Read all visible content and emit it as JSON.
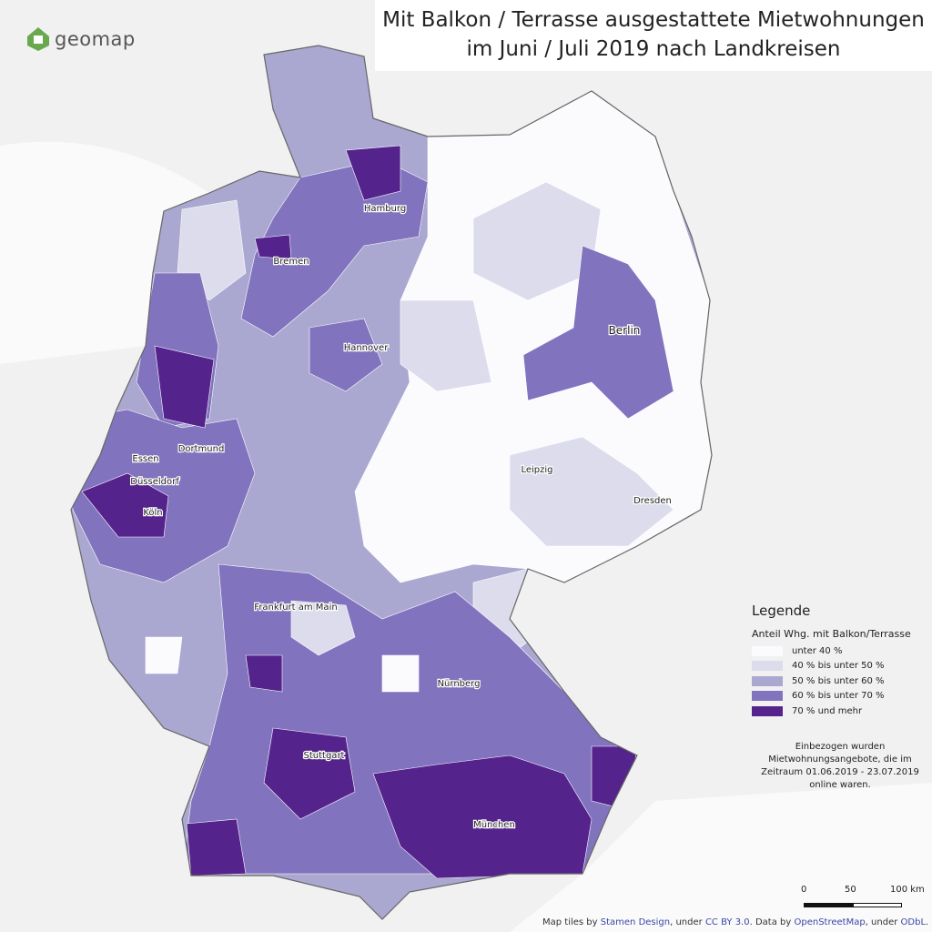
{
  "header": {
    "title_lines": [
      "Mit Balkon / Terrasse ausgestattete Mietwohnungen",
      "im Juni / Juli 2019 nach Landkreisen"
    ],
    "logo": "geomap"
  },
  "cities": [
    "Hamburg",
    "Bremen",
    "Berlin",
    "Hannover",
    "Essen",
    "Dortmund",
    "Düsseldorf",
    "Köln",
    "Leipzig",
    "Dresden",
    "Frankfurt am Main",
    "Nürnberg",
    "Stuttgart",
    "München"
  ],
  "legend": {
    "title": "Legende",
    "subtitle": "Anteil Whg. mit Balkon/Terrasse",
    "classes": [
      {
        "label": "unter 40 %",
        "color": "#fbfafd"
      },
      {
        "label": "40 % bis unter 50 %",
        "color": "#dcdcec"
      },
      {
        "label": "50 % bis unter 60 %",
        "color": "#aaa7d1"
      },
      {
        "label": "60 % bis unter 70 %",
        "color": "#8273bf"
      },
      {
        "label": "70 % und mehr",
        "color": "#55238c"
      }
    ]
  },
  "note": [
    "Einbezogen wurden",
    "Mietwohnungsangebote, die im",
    "Zeitraum 01.06.2019 -  23.07.2019",
    "online waren."
  ],
  "scale": {
    "labels": [
      "0",
      "50",
      "100 km"
    ]
  },
  "attribution": [
    "Map tiles by",
    "Stamen Design",
    ", under",
    "CC BY 3.0",
    ". Data by",
    "OpenStreetMap",
    ", under",
    "ODbL",
    "."
  ]
}
